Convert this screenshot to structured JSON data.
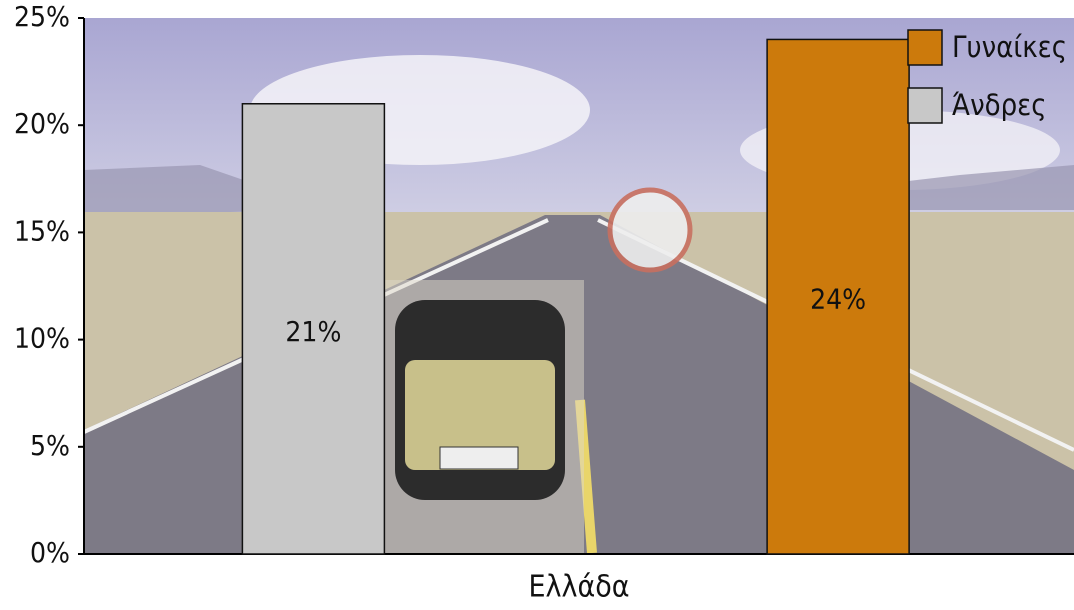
{
  "chart_data": {
    "type": "bar",
    "categories": [
      "Ελλάδα"
    ],
    "series": [
      {
        "name": "Άνδρες",
        "color": "#c8c8c8",
        "values": [
          21
        ],
        "value_labels": [
          "21%"
        ]
      },
      {
        "name": "Γυναίκες",
        "color": "#cc7a0c",
        "values": [
          24
        ],
        "value_labels": [
          "24%"
        ]
      }
    ],
    "ylim": [
      0,
      25
    ],
    "yticks": [
      {
        "value": 0,
        "label": "0%"
      },
      {
        "value": 5,
        "label": "5%"
      },
      {
        "value": 10,
        "label": "10%"
      },
      {
        "value": 15,
        "label": "15%"
      },
      {
        "value": 20,
        "label": "20%"
      },
      {
        "value": 25,
        "label": "25%"
      }
    ],
    "legend": "top-right"
  }
}
